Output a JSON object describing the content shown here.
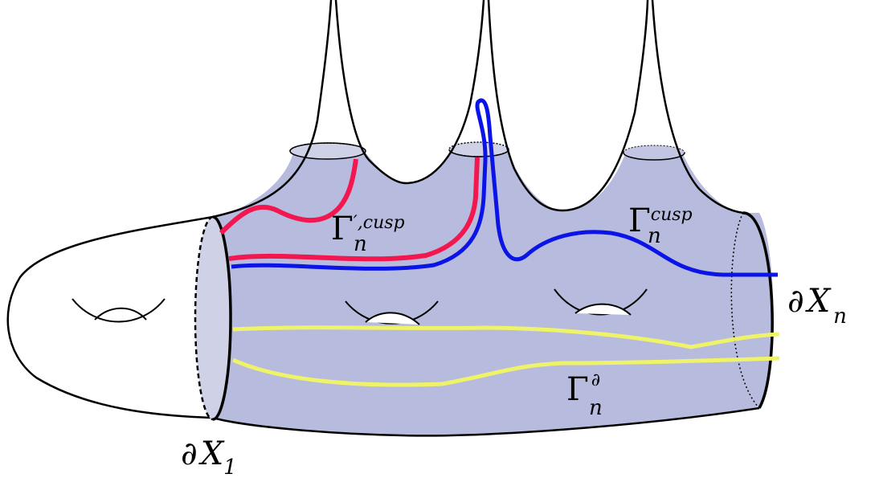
{
  "labels": [
    {
      "base": "∂",
      "main": "X",
      "sub": "1"
    },
    {
      "base": "∂",
      "main": "X",
      "sub": "n"
    },
    {
      "base": "Γ",
      "sup": "′,cusp",
      "sub": "n"
    },
    {
      "base": "Γ",
      "sup": "cusp",
      "sub": "n"
    },
    {
      "base": "Γ",
      "sup": "∂",
      "sub": "n"
    }
  ]
}
